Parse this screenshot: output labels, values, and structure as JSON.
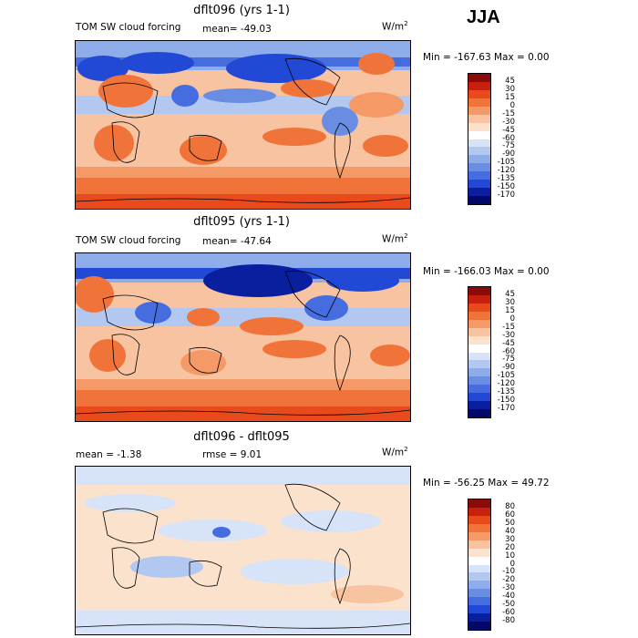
{
  "season": "JJA",
  "units": "W/m",
  "units_exp": "2",
  "panels": [
    {
      "title": "dflt096 (yrs 1-1)",
      "subtitle": "TOM SW cloud forcing",
      "mean_text": "mean= -49.03",
      "minmax_text": "Min = -167.63 Max =    0.00",
      "scale": [
        "45",
        "30",
        "15",
        "0",
        "-15",
        "-30",
        "-45",
        "-60",
        "-75",
        "-90",
        "-105",
        "-120",
        "-135",
        "-150",
        "-170"
      ],
      "colors": [
        "#8b0a0a",
        "#c8200e",
        "#e84a1c",
        "#f0743a",
        "#f59a66",
        "#f8c3a0",
        "#fbe2cc",
        "#ffffff",
        "#d7e3f8",
        "#b3c8f0",
        "#8eacea",
        "#6a8de4",
        "#456de0",
        "#2249d6",
        "#0a1f9e",
        "#02086a"
      ]
    },
    {
      "title": "dflt095 (yrs 1-1)",
      "subtitle": "TOM SW cloud forcing",
      "mean_text": "mean= -47.64",
      "minmax_text": "Min = -166.03 Max =    0.00",
      "scale": [
        "45",
        "30",
        "15",
        "0",
        "-15",
        "-30",
        "-45",
        "-60",
        "-75",
        "-90",
        "-105",
        "-120",
        "-135",
        "-150",
        "-170"
      ],
      "colors": [
        "#8b0a0a",
        "#c8200e",
        "#e84a1c",
        "#f0743a",
        "#f59a66",
        "#f8c3a0",
        "#fbe2cc",
        "#ffffff",
        "#d7e3f8",
        "#b3c8f0",
        "#8eacea",
        "#6a8de4",
        "#456de0",
        "#2249d6",
        "#0a1f9e",
        "#02086a"
      ]
    },
    {
      "title": "dflt096 - dflt095",
      "mean_text": "mean =   -1.38",
      "rmse_text": "rmse =    9.01",
      "minmax_text": "Min = -56.25 Max =  49.72",
      "scale": [
        "80",
        "60",
        "50",
        "40",
        "30",
        "20",
        "10",
        "0",
        "-10",
        "-20",
        "-30",
        "-40",
        "-50",
        "-60",
        "-80"
      ],
      "colors": [
        "#8b0a0a",
        "#c8200e",
        "#e84a1c",
        "#f0743a",
        "#f59a66",
        "#f8c3a0",
        "#fbe2cc",
        "#ffffff",
        "#d7e3f8",
        "#b3c8f0",
        "#8eacea",
        "#6a8de4",
        "#456de0",
        "#2249d6",
        "#0a1f9e",
        "#02086a"
      ]
    }
  ]
}
